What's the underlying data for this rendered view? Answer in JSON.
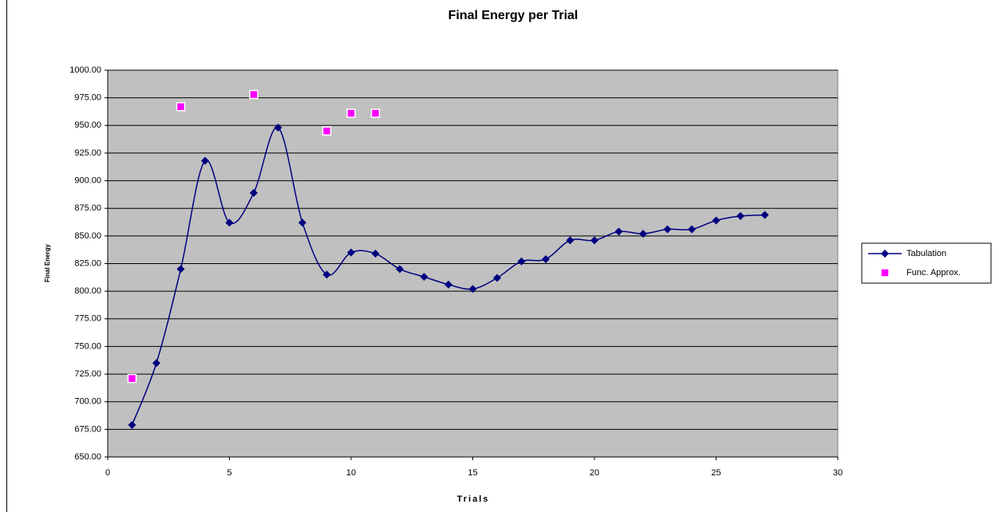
{
  "chart_data": {
    "type": "scatter",
    "title": "Final Energy per Trial",
    "x_label": "Trials",
    "y_label": "Final Energy",
    "xlim": [
      0,
      30
    ],
    "xticks": [
      0,
      5,
      10,
      15,
      20,
      25,
      30
    ],
    "ylim": [
      650,
      1000
    ],
    "yticks": [
      {
        "value": 650,
        "label": "650.00"
      },
      {
        "value": 675,
        "label": "675.00"
      },
      {
        "value": 700,
        "label": "700.00"
      },
      {
        "value": 725,
        "label": "725.00"
      },
      {
        "value": 750,
        "label": "750.00"
      },
      {
        "value": 775,
        "label": "775.00"
      },
      {
        "value": 800,
        "label": "800.00"
      },
      {
        "value": 825,
        "label": "825.00"
      },
      {
        "value": 850,
        "label": "850.00"
      },
      {
        "value": 875,
        "label": "875.00"
      },
      {
        "value": 900,
        "label": "900.00"
      },
      {
        "value": 925,
        "label": "925.00"
      },
      {
        "value": 950,
        "label": "950.00"
      },
      {
        "value": 975,
        "label": "975.00"
      },
      {
        "value": 1000,
        "label": "1000.00"
      }
    ],
    "grid": true,
    "plot_background": "#c0c0c0",
    "legend": "right",
    "series": [
      {
        "name": "Tabulation",
        "color": "#000080",
        "line": "smooth",
        "marker": "diamond",
        "x": [
          1,
          2,
          3,
          4,
          5,
          6,
          7,
          8,
          9,
          10,
          11,
          12,
          13,
          14,
          15,
          16,
          17,
          18,
          19,
          20,
          21,
          22,
          23,
          24,
          25,
          26,
          27
        ],
        "values": [
          679,
          735,
          820,
          918,
          862,
          889,
          948,
          862,
          815,
          835,
          834,
          820,
          813,
          806,
          802,
          812,
          827,
          829,
          846,
          846,
          854,
          852,
          856,
          856,
          864,
          868,
          869
        ]
      },
      {
        "name": "Func. Approx.",
        "color": "#ff00ff",
        "line": "none",
        "marker": "square",
        "x": [
          1,
          3,
          6,
          9,
          10,
          11
        ],
        "values": [
          721,
          967,
          978,
          945,
          961,
          961
        ]
      }
    ]
  }
}
